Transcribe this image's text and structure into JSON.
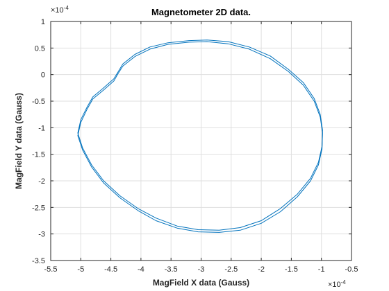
{
  "chart_data": {
    "type": "line",
    "title": "Magnetometer 2D data.",
    "xlabel": "MagField X data (Gauss)",
    "ylabel": "MagField Y data (Gauss)",
    "x_exponent": "×10^-4",
    "y_exponent": "×10^-4",
    "xlim": [
      -5.5,
      -0.5
    ],
    "ylim": [
      -3.5,
      1.0
    ],
    "x_ticks": [
      -5.5,
      -5,
      -4.5,
      -4,
      -3.5,
      -3,
      -2.5,
      -2,
      -1.5,
      -1,
      -0.5
    ],
    "x_tick_labels": [
      "-5.5",
      "-5",
      "-4.5",
      "-4",
      "-3.5",
      "-3",
      "-2.5",
      "-2",
      "-1.5",
      "-1",
      "-0.5"
    ],
    "y_ticks": [
      1,
      0.5,
      0,
      -0.5,
      -1,
      -1.5,
      -2,
      -2.5,
      -3,
      -3.5
    ],
    "y_tick_labels": [
      "1",
      "0.5",
      "0",
      "-0.5",
      "-1",
      "-1.5",
      "-2",
      "-2.5",
      "-3",
      "-3.5"
    ],
    "grid": true,
    "color": "#0072bd",
    "series": [
      {
        "x": [
          -2.9,
          -2.55,
          -2.2,
          -1.85,
          -1.55,
          -1.3,
          -1.12,
          -1.02,
          -0.98,
          -0.99,
          -1.05,
          -1.18,
          -1.4,
          -1.68,
          -2.0,
          -2.35,
          -2.7,
          -3.05,
          -3.4,
          -3.75,
          -4.05,
          -4.35,
          -4.62,
          -4.82,
          -4.97,
          -5.05,
          -5.0,
          -4.9,
          -4.8,
          -4.62,
          -4.45,
          -4.38,
          -4.3,
          -4.1,
          -3.85,
          -3.55,
          -3.2,
          -2.9
        ],
        "y": [
          0.65,
          0.62,
          0.52,
          0.35,
          0.1,
          -0.15,
          -0.45,
          -0.75,
          -1.05,
          -1.35,
          -1.65,
          -1.95,
          -2.25,
          -2.52,
          -2.75,
          -2.88,
          -2.93,
          -2.92,
          -2.85,
          -2.7,
          -2.52,
          -2.28,
          -2.0,
          -1.7,
          -1.38,
          -1.1,
          -0.85,
          -0.62,
          -0.42,
          -0.25,
          -0.08,
          0.05,
          0.2,
          0.38,
          0.52,
          0.6,
          0.64,
          0.65
        ]
      },
      {
        "x": [
          -2.9,
          -2.55,
          -2.2,
          -1.85,
          -1.55,
          -1.3,
          -1.12,
          -1.02,
          -0.98,
          -0.99,
          -1.05,
          -1.18,
          -1.4,
          -1.68,
          -2.0,
          -2.35,
          -2.7,
          -3.05,
          -3.4,
          -3.75,
          -4.05,
          -4.35,
          -4.62,
          -4.82,
          -4.97,
          -5.05,
          -5.0,
          -4.9,
          -4.8,
          -4.62,
          -4.45,
          -4.38,
          -4.3,
          -4.1,
          -3.85,
          -3.55,
          -3.2,
          -2.9
        ],
        "y": [
          0.62,
          0.58,
          0.48,
          0.3,
          0.06,
          -0.2,
          -0.5,
          -0.8,
          -1.1,
          -1.4,
          -1.7,
          -2.0,
          -2.3,
          -2.58,
          -2.8,
          -2.93,
          -2.97,
          -2.96,
          -2.89,
          -2.75,
          -2.56,
          -2.32,
          -2.04,
          -1.74,
          -1.42,
          -1.15,
          -0.9,
          -0.66,
          -0.46,
          -0.29,
          -0.12,
          0.02,
          0.16,
          0.34,
          0.48,
          0.57,
          0.61,
          0.62
        ]
      }
    ]
  }
}
